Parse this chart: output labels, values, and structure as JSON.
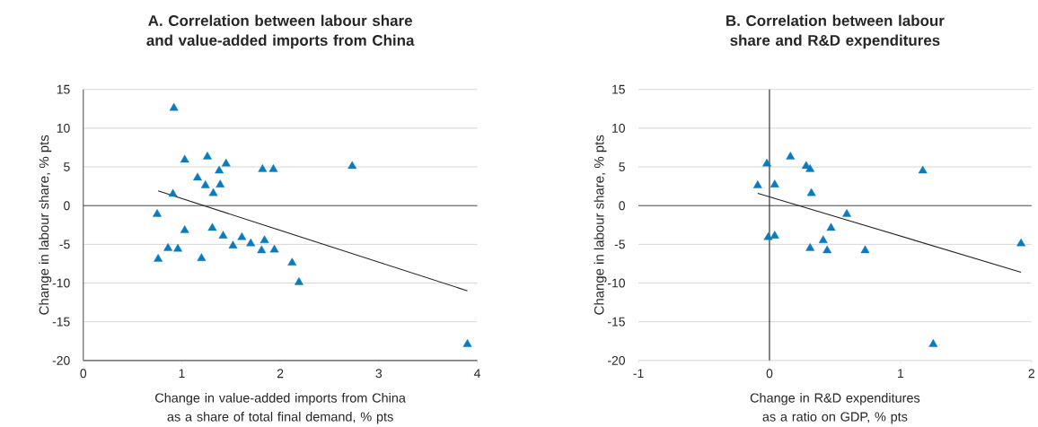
{
  "chart_data": [
    {
      "type": "scatter",
      "title": "A. Correlation between labour share and value-added imports from China",
      "xlabel": "Change in value-added imports from China as a share of total final demand, % pts",
      "ylabel": "Change in labour share, % pts",
      "xlim": [
        0,
        4
      ],
      "ylim": [
        -20,
        15
      ],
      "xticks": [
        0,
        1,
        2,
        3,
        4
      ],
      "yticks": [
        -20,
        -15,
        -10,
        -5,
        0,
        5,
        10,
        15
      ],
      "grid": "y",
      "ref_lines": [
        {
          "axis": "y",
          "value": 0,
          "color": "#555555"
        }
      ],
      "series": [
        {
          "type": "scatter",
          "color": "#0a7bbf",
          "marker": "triangle",
          "x": [
            0.92,
            1.03,
            1.26,
            1.45,
            1.38,
            1.82,
            1.93,
            2.73,
            1.16,
            1.24,
            1.39,
            1.32,
            0.91,
            0.75,
            1.03,
            1.31,
            1.42,
            1.61,
            1.52,
            1.7,
            1.84,
            0.86,
            0.96,
            1.81,
            1.94,
            0.76,
            1.2,
            2.12,
            2.19,
            3.9
          ],
          "values": [
            12.6,
            5.9,
            6.3,
            5.4,
            4.5,
            4.7,
            4.7,
            5.1,
            3.6,
            2.6,
            2.7,
            1.6,
            1.5,
            -1.1,
            -3.2,
            -2.9,
            -3.9,
            -4.1,
            -5.2,
            -4.9,
            -4.5,
            -5.5,
            -5.6,
            -5.8,
            -5.7,
            -6.9,
            -6.8,
            -7.4,
            -9.9,
            -17.9
          ]
        },
        {
          "type": "line",
          "color": "#222222",
          "x": [
            0.76,
            3.9
          ],
          "values": [
            1.9,
            -11.0
          ]
        }
      ]
    },
    {
      "type": "scatter",
      "title": "B. Correlation between labour share and R&D expenditures",
      "xlabel": "Change in R&D expenditures as a ratio on GDP, % pts",
      "ylabel": "Change in labour share, % pts",
      "xlim": [
        -1,
        2
      ],
      "ylim": [
        -20,
        15
      ],
      "xticks": [
        -1,
        0,
        1,
        2
      ],
      "yticks": [
        -20,
        -15,
        -10,
        -5,
        0,
        5,
        10,
        15
      ],
      "grid": "y",
      "ref_lines": [
        {
          "axis": "y",
          "value": 0,
          "color": "#555555"
        },
        {
          "axis": "x",
          "value": 0,
          "color": "#222222"
        }
      ],
      "series": [
        {
          "type": "scatter",
          "color": "#0a7bbf",
          "marker": "triangle",
          "x": [
            -0.02,
            0.16,
            0.28,
            0.31,
            1.17,
            -0.09,
            0.04,
            0.32,
            0.59,
            0.47,
            -0.01,
            0.04,
            0.41,
            0.31,
            0.44,
            0.73,
            1.92,
            1.25
          ],
          "values": [
            5.4,
            6.3,
            5.1,
            4.7,
            4.5,
            2.6,
            2.7,
            1.6,
            -1.1,
            -2.9,
            -4.1,
            -3.9,
            -4.5,
            -5.5,
            -5.8,
            -5.8,
            -4.9,
            -17.9
          ]
        },
        {
          "type": "line",
          "color": "#222222",
          "x": [
            -0.09,
            1.92
          ],
          "values": [
            1.6,
            -8.6
          ]
        }
      ]
    }
  ]
}
